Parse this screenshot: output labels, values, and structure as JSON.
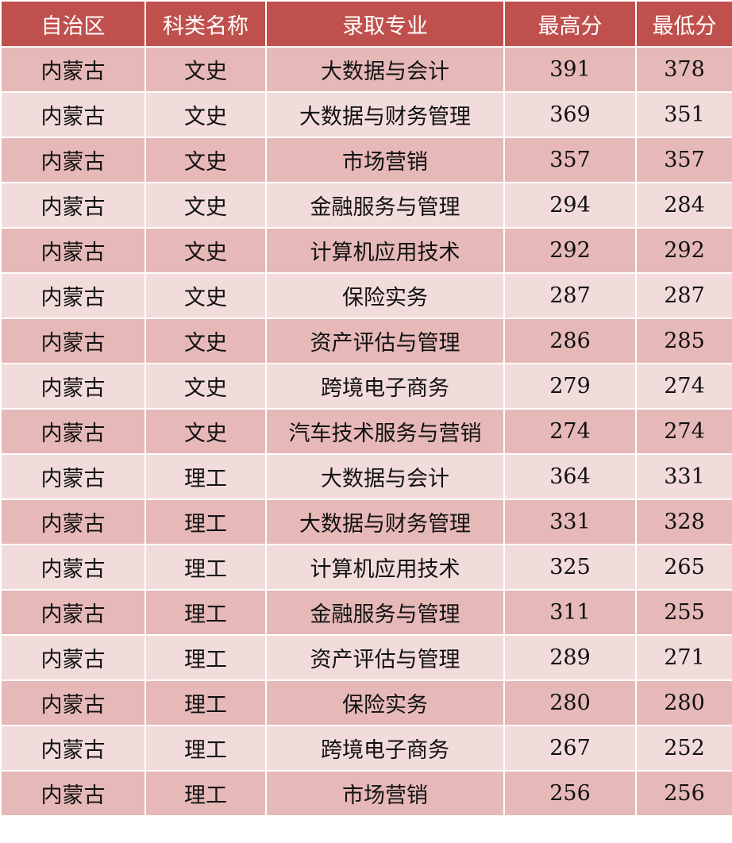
{
  "colors": {
    "header": "#c0504d",
    "row_odd": "#e6b9b8",
    "row_even": "#f2dcdb"
  },
  "headers": [
    "自治区",
    "科类名称",
    "录取专业",
    "最高分",
    "最低分"
  ],
  "rows": [
    [
      "内蒙古",
      "文史",
      "大数据与会计",
      "391",
      "378"
    ],
    [
      "内蒙古",
      "文史",
      "大数据与财务管理",
      "369",
      "351"
    ],
    [
      "内蒙古",
      "文史",
      "市场营销",
      "357",
      "357"
    ],
    [
      "内蒙古",
      "文史",
      "金融服务与管理",
      "294",
      "284"
    ],
    [
      "内蒙古",
      "文史",
      "计算机应用技术",
      "292",
      "292"
    ],
    [
      "内蒙古",
      "文史",
      "保险实务",
      "287",
      "287"
    ],
    [
      "内蒙古",
      "文史",
      "资产评估与管理",
      "286",
      "285"
    ],
    [
      "内蒙古",
      "文史",
      "跨境电子商务",
      "279",
      "274"
    ],
    [
      "内蒙古",
      "文史",
      "汽车技术服务与营销",
      "274",
      "274"
    ],
    [
      "内蒙古",
      "理工",
      "大数据与会计",
      "364",
      "331"
    ],
    [
      "内蒙古",
      "理工",
      "大数据与财务管理",
      "331",
      "328"
    ],
    [
      "内蒙古",
      "理工",
      "计算机应用技术",
      "325",
      "265"
    ],
    [
      "内蒙古",
      "理工",
      "金融服务与管理",
      "311",
      "255"
    ],
    [
      "内蒙古",
      "理工",
      "资产评估与管理",
      "289",
      "271"
    ],
    [
      "内蒙古",
      "理工",
      "保险实务",
      "280",
      "280"
    ],
    [
      "内蒙古",
      "理工",
      "跨境电子商务",
      "267",
      "252"
    ],
    [
      "内蒙古",
      "理工",
      "市场营销",
      "256",
      "256"
    ]
  ]
}
